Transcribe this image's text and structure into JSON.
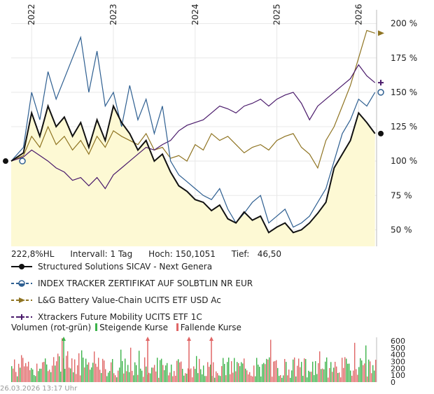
{
  "chart_data": {
    "type": "line",
    "x_ticks": [
      "2022",
      "2023",
      "2024",
      "2025",
      "2026"
    ],
    "y_ticks": [
      "200 %",
      "175 %",
      "150 %",
      "125 %",
      "100 %",
      "75 %",
      "50 %"
    ],
    "ylim": [
      38,
      210
    ],
    "grid": true,
    "legend_position": "bottom",
    "series": [
      {
        "name": "Structured Solutions SICAV - Next Genera",
        "color": "#111111",
        "x": [
          2021.75,
          2021.9,
          2022.0,
          2022.1,
          2022.2,
          2022.3,
          2022.4,
          2022.5,
          2022.6,
          2022.7,
          2022.8,
          2022.9,
          2023.0,
          2023.1,
          2023.2,
          2023.3,
          2023.4,
          2023.5,
          2023.6,
          2023.7,
          2023.8,
          2023.9,
          2024.0,
          2024.1,
          2024.2,
          2024.3,
          2024.4,
          2024.5,
          2024.6,
          2024.7,
          2024.8,
          2024.9,
          2025.0,
          2025.1,
          2025.2,
          2025.3,
          2025.4,
          2025.5,
          2025.6,
          2025.7,
          2025.8,
          2025.9,
          2026.0,
          2026.1,
          2026.2
        ],
        "y": [
          100,
          106,
          135,
          118,
          140,
          125,
          132,
          118,
          128,
          110,
          130,
          115,
          140,
          128,
          120,
          108,
          115,
          100,
          105,
          92,
          82,
          78,
          72,
          70,
          64,
          68,
          58,
          55,
          63,
          57,
          60,
          48,
          52,
          55,
          48,
          50,
          55,
          62,
          70,
          95,
          105,
          115,
          135,
          128,
          120
        ]
      },
      {
        "name": "INDEX TRACKER ZERTIFIKAT AUF SOLBTLIN NR EUR",
        "color": "#2e5f91",
        "x": [
          2021.75,
          2021.9,
          2022.0,
          2022.1,
          2022.2,
          2022.3,
          2022.4,
          2022.5,
          2022.6,
          2022.7,
          2022.8,
          2022.9,
          2023.0,
          2023.1,
          2023.2,
          2023.3,
          2023.4,
          2023.5,
          2023.6,
          2023.7,
          2023.8,
          2023.9,
          2024.0,
          2024.1,
          2024.2,
          2024.3,
          2024.4,
          2024.5,
          2024.6,
          2024.7,
          2024.8,
          2024.9,
          2025.0,
          2025.1,
          2025.2,
          2025.3,
          2025.4,
          2025.5,
          2025.6,
          2025.7,
          2025.8,
          2025.9,
          2026.0,
          2026.1,
          2026.2
        ],
        "y": [
          100,
          110,
          150,
          130,
          165,
          145,
          160,
          175,
          190,
          150,
          180,
          140,
          150,
          125,
          155,
          130,
          145,
          120,
          140,
          100,
          90,
          85,
          80,
          75,
          72,
          80,
          65,
          55,
          62,
          70,
          75,
          55,
          60,
          65,
          52,
          55,
          60,
          70,
          80,
          100,
          120,
          130,
          145,
          140,
          150
        ]
      },
      {
        "name": "L&G Battery Value-Chain UCITS ETF USD Ac",
        "color": "#8f7422",
        "x": [
          2021.75,
          2021.9,
          2022.0,
          2022.1,
          2022.2,
          2022.3,
          2022.4,
          2022.5,
          2022.6,
          2022.7,
          2022.8,
          2022.9,
          2023.0,
          2023.1,
          2023.2,
          2023.3,
          2023.4,
          2023.5,
          2023.6,
          2023.7,
          2023.8,
          2023.9,
          2024.0,
          2024.1,
          2024.2,
          2024.3,
          2024.4,
          2024.5,
          2024.6,
          2024.7,
          2024.8,
          2024.9,
          2025.0,
          2025.1,
          2025.2,
          2025.3,
          2025.4,
          2025.5,
          2025.6,
          2025.7,
          2025.8,
          2025.9,
          2026.0,
          2026.1,
          2026.2
        ],
        "y": [
          100,
          104,
          118,
          110,
          125,
          112,
          118,
          108,
          115,
          105,
          118,
          110,
          122,
          118,
          115,
          112,
          120,
          108,
          110,
          102,
          104,
          100,
          112,
          108,
          120,
          115,
          118,
          112,
          106,
          110,
          112,
          108,
          115,
          118,
          120,
          110,
          105,
          95,
          115,
          125,
          140,
          155,
          175,
          195,
          193
        ]
      },
      {
        "name": "Xtrackers Future Mobility UCITS ETF 1C",
        "color": "#4a1a6b",
        "x": [
          2021.75,
          2021.9,
          2022.0,
          2022.1,
          2022.2,
          2022.3,
          2022.4,
          2022.5,
          2022.6,
          2022.7,
          2022.8,
          2022.9,
          2023.0,
          2023.1,
          2023.2,
          2023.3,
          2023.4,
          2023.5,
          2023.6,
          2023.7,
          2023.8,
          2023.9,
          2024.0,
          2024.1,
          2024.2,
          2024.3,
          2024.4,
          2024.5,
          2024.6,
          2024.7,
          2024.8,
          2024.9,
          2025.0,
          2025.1,
          2025.2,
          2025.3,
          2025.4,
          2025.5,
          2025.6,
          2025.7,
          2025.8,
          2025.9,
          2026.0,
          2026.1,
          2026.2
        ],
        "y": [
          100,
          103,
          108,
          104,
          100,
          95,
          92,
          86,
          88,
          82,
          88,
          80,
          90,
          95,
          100,
          105,
          110,
          108,
          112,
          115,
          122,
          126,
          128,
          130,
          135,
          140,
          138,
          135,
          140,
          142,
          145,
          140,
          145,
          148,
          150,
          142,
          130,
          140,
          145,
          150,
          155,
          160,
          170,
          162,
          157
        ]
      }
    ],
    "volume": {
      "label": "Volumen (rot-grün)",
      "up_label": "Steigende Kurse",
      "down_label": "Fallende Kurse",
      "up_color": "#3cb34a",
      "down_color": "#e06666",
      "y_ticks": [
        "600",
        "500",
        "400",
        "300",
        "200",
        "100",
        "0"
      ],
      "ylim": [
        0,
        650
      ]
    }
  },
  "info": {
    "perf": "222,8%HL",
    "interval": "Intervall: 1 Tag",
    "high": "Hoch: 150,1051",
    "low": "Tief:   46,50"
  },
  "timestamp": "26.03.2026 13:17 Uhr"
}
